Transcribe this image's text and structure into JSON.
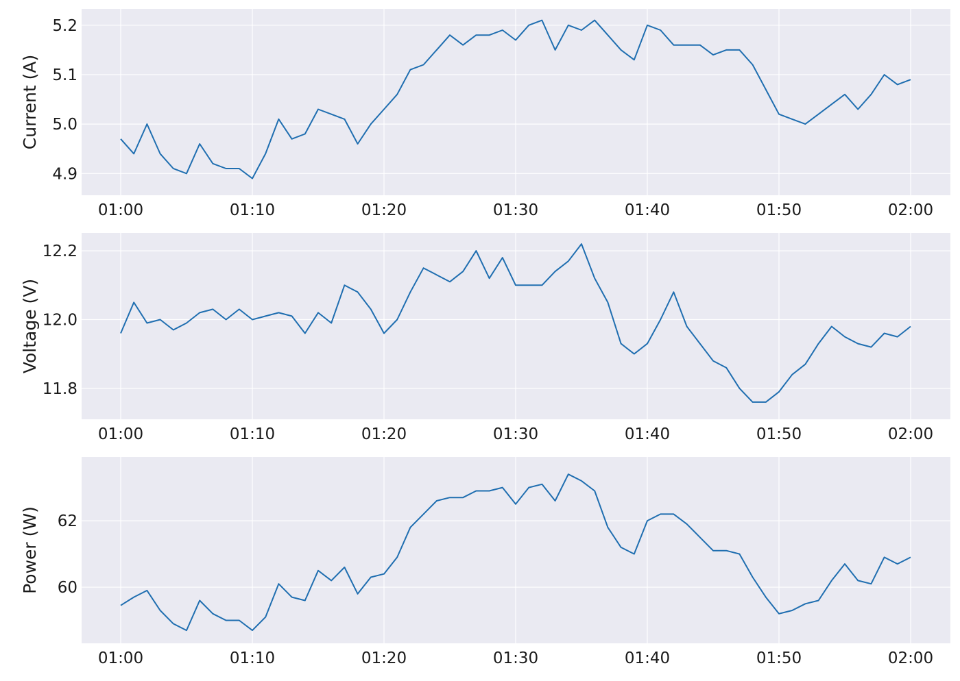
{
  "chart_data": [
    {
      "type": "line",
      "ylabel": "Current (A)",
      "xlabel": "",
      "x_ticks": [
        "01:00",
        "01:10",
        "01:20",
        "01:30",
        "01:40",
        "01:50",
        "02:00"
      ],
      "y_ticks": [
        "4.9",
        "5.0",
        "5.1",
        "5.2"
      ],
      "ylim": [
        4.856,
        5.233
      ],
      "grid": true,
      "line_color": "#1f6eb0",
      "background": "#eaeaf2",
      "x": [
        "01:00",
        "01:01",
        "01:02",
        "01:03",
        "01:04",
        "01:05",
        "01:06",
        "01:07",
        "01:08",
        "01:09",
        "01:10",
        "01:11",
        "01:12",
        "01:13",
        "01:14",
        "01:15",
        "01:16",
        "01:17",
        "01:18",
        "01:19",
        "01:20",
        "01:21",
        "01:22",
        "01:23",
        "01:24",
        "01:25",
        "01:26",
        "01:27",
        "01:28",
        "01:29",
        "01:30",
        "01:31",
        "01:32",
        "01:33",
        "01:34",
        "01:35",
        "01:36",
        "01:37",
        "01:38",
        "01:39",
        "01:40",
        "01:41",
        "01:42",
        "01:43",
        "01:44",
        "01:45",
        "01:46",
        "01:47",
        "01:48",
        "01:49",
        "01:50",
        "01:51",
        "01:52",
        "01:53",
        "01:54",
        "01:55",
        "01:56",
        "01:57",
        "01:58",
        "01:59",
        "02:00"
      ],
      "values": [
        4.97,
        4.94,
        5.0,
        4.94,
        4.91,
        4.9,
        4.96,
        4.92,
        4.91,
        4.91,
        4.89,
        4.94,
        5.01,
        4.97,
        4.98,
        5.03,
        5.02,
        5.01,
        4.96,
        5.0,
        5.03,
        5.06,
        5.11,
        5.12,
        5.15,
        5.18,
        5.16,
        5.18,
        5.18,
        5.19,
        5.17,
        5.2,
        5.21,
        5.15,
        5.2,
        5.19,
        5.21,
        5.18,
        5.15,
        5.13,
        5.2,
        5.19,
        5.16,
        5.16,
        5.16,
        5.14,
        5.15,
        5.15,
        5.12,
        5.07,
        5.02,
        5.01,
        5.0,
        5.02,
        5.04,
        5.06,
        5.03,
        5.06,
        5.1,
        5.08,
        5.09
      ]
    },
    {
      "type": "line",
      "ylabel": "Voltage (V)",
      "xlabel": "",
      "x_ticks": [
        "01:00",
        "01:10",
        "01:20",
        "01:30",
        "01:40",
        "01:50",
        "02:00"
      ],
      "y_ticks": [
        "11.8",
        "12.0",
        "12.2"
      ],
      "ylim": [
        11.71,
        12.252
      ],
      "grid": true,
      "line_color": "#1f6eb0",
      "background": "#eaeaf2",
      "values": [
        11.96,
        12.05,
        11.99,
        12.0,
        11.97,
        11.99,
        12.02,
        12.03,
        12.0,
        12.03,
        12.0,
        12.01,
        12.02,
        12.01,
        11.96,
        12.02,
        11.99,
        12.1,
        12.08,
        12.03,
        11.96,
        12.0,
        12.08,
        12.15,
        12.13,
        12.11,
        12.14,
        12.2,
        12.12,
        12.18,
        12.1,
        12.1,
        12.1,
        12.14,
        12.17,
        12.22,
        12.12,
        12.05,
        11.93,
        11.9,
        11.93,
        12.0,
        12.08,
        11.98,
        11.93,
        11.88,
        11.86,
        11.8,
        11.76,
        11.76,
        11.79,
        11.84,
        11.87,
        11.93,
        11.98,
        11.95,
        11.93,
        11.92,
        11.96,
        11.95,
        11.98
      ]
    },
    {
      "type": "line",
      "ylabel": "Power (W)",
      "xlabel": "",
      "x_ticks": [
        "01:00",
        "01:10",
        "01:20",
        "01:30",
        "01:40",
        "01:50",
        "02:00"
      ],
      "y_ticks": [
        "60",
        "62"
      ],
      "ylim": [
        58.31,
        63.92
      ],
      "grid": true,
      "line_color": "#1f6eb0",
      "background": "#eaeaf2",
      "values": [
        59.45,
        59.7,
        59.9,
        59.3,
        58.9,
        58.7,
        59.6,
        59.2,
        59.0,
        59.0,
        58.7,
        59.1,
        60.1,
        59.7,
        59.6,
        60.5,
        60.2,
        60.6,
        59.8,
        60.3,
        60.4,
        60.9,
        61.8,
        62.2,
        62.6,
        62.7,
        62.7,
        62.9,
        62.9,
        63.0,
        62.5,
        63.0,
        63.1,
        62.6,
        63.4,
        63.2,
        62.9,
        61.8,
        61.2,
        61.0,
        62.0,
        62.2,
        62.2,
        61.9,
        61.5,
        61.1,
        61.1,
        61.0,
        60.3,
        59.7,
        59.2,
        59.3,
        59.5,
        59.6,
        60.2,
        60.7,
        60.2,
        60.1,
        60.9,
        60.7,
        60.9
      ]
    }
  ]
}
